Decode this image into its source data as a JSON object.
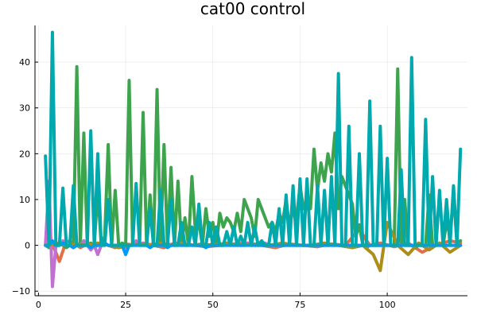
{
  "chart_data": {
    "type": "line",
    "title": "cat00 control",
    "xlabel": "",
    "ylabel": "",
    "xlim": [
      -1,
      123
    ],
    "ylim": [
      -11,
      48
    ],
    "xticks": [
      0,
      25,
      50,
      75,
      100
    ],
    "yticks": [
      -10,
      0,
      10,
      20,
      30,
      40
    ],
    "grid": true,
    "legend": "none",
    "series": [
      {
        "color": "#e26f46",
        "x": [
          2,
          4,
          6,
          8,
          10,
          12,
          14,
          16,
          18,
          20,
          22,
          25,
          28,
          30,
          33,
          36,
          39,
          42,
          45,
          48,
          52,
          56,
          60,
          64,
          68,
          72,
          76,
          80,
          84,
          88,
          92,
          95,
          98,
          102,
          106,
          110,
          114,
          118,
          121
        ],
        "y": [
          0,
          0.3,
          -3.5,
          1,
          0.5,
          -0.5,
          0.3,
          -0.5,
          0.5,
          0,
          -0.5,
          0.3,
          0,
          0.5,
          0,
          -0.5,
          0.5,
          0.3,
          0,
          -0.3,
          0,
          0.3,
          0.5,
          0,
          -0.5,
          0.3,
          0,
          -0.3,
          0.3,
          0,
          3.5,
          0,
          0.5,
          -0.3,
          0.5,
          -1.5,
          0,
          1,
          0.5
        ]
      },
      {
        "color": "#3da44d",
        "x": [
          2,
          3,
          4,
          5,
          6,
          7,
          8,
          9,
          10,
          11,
          12,
          13,
          14,
          15,
          16,
          17,
          18,
          19,
          20,
          21,
          22,
          23,
          24,
          25,
          26,
          27,
          28,
          29,
          30,
          31,
          32,
          33,
          34,
          35,
          36,
          37,
          38,
          39,
          40,
          41,
          42,
          43,
          44,
          45,
          46,
          47,
          48,
          49,
          50,
          51,
          52,
          53,
          54,
          55,
          56,
          57,
          58,
          59,
          60,
          61,
          62,
          63,
          64,
          65,
          66,
          67,
          68,
          69,
          70,
          71,
          72,
          73,
          74,
          75,
          76,
          77,
          78,
          79,
          80,
          81,
          82,
          83,
          84,
          85,
          86,
          87,
          88,
          89,
          90,
          91,
          92,
          93,
          94,
          95,
          96,
          97,
          98,
          99,
          100,
          101,
          102,
          103,
          104,
          105,
          106,
          107,
          108,
          109,
          110,
          111,
          112,
          113,
          114,
          115,
          116,
          117,
          118,
          119,
          120,
          121
        ],
        "y": [
          0,
          -0.5,
          0.5,
          0,
          0.5,
          0,
          -0.5,
          0,
          0,
          39,
          0,
          24.5,
          0,
          0.5,
          0,
          12,
          0,
          2,
          22,
          0,
          12,
          0,
          0.5,
          0,
          36,
          0,
          0.5,
          0,
          29,
          0,
          11,
          0,
          34,
          0,
          22,
          0,
          17,
          0,
          14,
          0,
          6,
          0,
          15,
          3,
          5,
          0,
          8,
          2,
          5,
          0,
          7,
          4,
          6,
          5,
          3,
          7,
          3,
          10,
          8,
          6,
          2,
          10,
          8,
          6,
          4,
          5,
          3,
          7,
          5,
          10,
          4,
          8,
          6,
          13,
          8,
          10,
          8,
          21,
          12,
          18,
          14,
          20,
          16,
          24.5,
          8,
          15,
          13,
          11,
          9,
          2,
          4.5,
          0,
          -0.5,
          0,
          0,
          0,
          0,
          0,
          0,
          0,
          0,
          38.5,
          0,
          10,
          0,
          0,
          -0.5,
          0,
          0,
          0,
          11,
          0,
          0,
          0.5,
          0,
          5,
          2,
          11,
          0.5,
          1
        ]
      },
      {
        "color": "#c271d2",
        "x": [
          2,
          3,
          4,
          5,
          6,
          7,
          8,
          9,
          10,
          11,
          12,
          13,
          14,
          15,
          16,
          17,
          18,
          19,
          20,
          21,
          22,
          23,
          24,
          25,
          26,
          27,
          28,
          29,
          30,
          31,
          32,
          33,
          34,
          35,
          36,
          37,
          38,
          39,
          40,
          41,
          42,
          43,
          44,
          45,
          46,
          47,
          48,
          49,
          50,
          51,
          52,
          53,
          54,
          55,
          56,
          57,
          58,
          59,
          60,
          61,
          62,
          63,
          64,
          65,
          66,
          67,
          68,
          69,
          70,
          71,
          72,
          73,
          74,
          75,
          76,
          77,
          78,
          79,
          80,
          81,
          82,
          83,
          84,
          85,
          86,
          87,
          88,
          89,
          90,
          91,
          92,
          93,
          94,
          95,
          96,
          97,
          98,
          99,
          100,
          101,
          102,
          103,
          104,
          105,
          106,
          107,
          108,
          109,
          110,
          111,
          112,
          113,
          114,
          115,
          116,
          117,
          118,
          119,
          120,
          121
        ],
        "y": [
          0,
          14,
          -9,
          0,
          0,
          1,
          0,
          0,
          -0.5,
          0,
          0,
          1,
          0,
          -1,
          0,
          -2,
          0,
          0.5,
          0,
          0,
          -0.5,
          0,
          0,
          -0.5,
          0,
          0,
          1,
          0,
          0.5,
          0,
          0,
          0.5,
          0,
          0,
          0,
          0.5,
          0,
          0,
          0.5,
          0,
          0,
          0.5,
          0,
          0,
          0,
          0.5,
          0,
          0,
          0.5,
          0,
          0,
          0,
          0.5,
          0,
          0,
          0,
          0,
          0,
          0.5,
          0,
          0,
          0,
          0,
          0.5,
          0,
          0,
          0,
          0,
          0,
          0,
          0,
          0,
          0,
          0,
          0,
          0,
          0,
          0,
          0,
          0,
          0,
          0,
          0,
          0,
          0,
          0,
          0,
          0,
          0,
          0,
          0,
          0,
          0,
          0,
          0,
          0,
          0,
          0,
          0,
          0,
          0,
          0,
          0,
          0,
          0,
          0,
          0,
          0,
          0,
          0,
          0,
          0,
          0,
          0,
          0,
          0,
          0,
          0,
          0,
          0
        ]
      },
      {
        "color": "#ac8d18",
        "x": [
          2,
          5,
          8,
          11,
          14,
          17,
          20,
          23,
          26,
          29,
          32,
          35,
          38,
          41,
          44,
          47,
          50,
          54,
          58,
          62,
          66,
          70,
          74,
          78,
          82,
          86,
          90,
          93,
          96,
          98,
          100,
          103,
          106,
          109,
          112,
          115,
          118,
          121
        ],
        "y": [
          0,
          0.5,
          0,
          0.3,
          0,
          0.5,
          0,
          -0.5,
          0,
          0.3,
          0,
          0.5,
          0,
          0.5,
          0,
          0.3,
          0,
          0.5,
          0,
          0.3,
          0,
          0.5,
          0,
          0,
          0.5,
          0,
          -0.5,
          0,
          -2,
          -5.5,
          5,
          0,
          -2,
          0.5,
          -1,
          0.5,
          -1.5,
          0
        ]
      },
      {
        "color": "#009af9",
        "x": [
          2,
          3,
          4,
          5,
          6,
          7,
          8,
          9,
          10,
          11,
          12,
          13,
          14,
          15,
          16,
          17,
          18,
          19,
          20,
          21,
          22,
          23,
          24,
          25,
          26,
          27,
          28,
          29,
          30,
          31,
          32,
          33,
          34,
          35,
          36,
          37,
          38,
          39,
          40,
          41,
          42,
          43,
          44,
          45,
          46,
          47,
          48,
          49,
          50,
          51,
          52,
          53,
          54,
          55,
          56,
          57,
          58,
          59,
          60,
          61,
          62,
          63,
          64,
          65,
          66,
          67,
          68,
          69,
          70,
          71,
          72,
          73,
          74,
          75,
          76,
          77,
          78,
          79,
          80,
          81,
          82,
          83,
          84,
          85,
          86,
          87,
          88,
          89,
          90,
          91,
          92,
          93,
          94,
          95,
          96,
          97,
          98,
          99,
          100,
          101,
          102,
          103,
          104,
          105,
          106,
          107,
          108,
          109,
          110,
          111,
          112,
          113,
          114,
          115,
          116,
          117,
          118,
          119,
          120,
          121
        ],
        "y": [
          0,
          0,
          1,
          0,
          0,
          0.5,
          0,
          0,
          -0.5,
          0,
          0,
          0,
          0,
          -0.5,
          0,
          0,
          0,
          0.5,
          0,
          0,
          0,
          0,
          0,
          -2,
          0,
          0,
          0,
          0,
          0,
          0,
          -0.5,
          0,
          0,
          0,
          0,
          -0.5,
          0,
          0,
          0,
          0,
          0,
          0,
          0,
          0,
          0,
          0,
          -0.5,
          0,
          0,
          0,
          0,
          0,
          0,
          0,
          0,
          0,
          0,
          0,
          0,
          0,
          0,
          0,
          0,
          0,
          0,
          0,
          0,
          0,
          0,
          0,
          0,
          0,
          0,
          0,
          0,
          0,
          0,
          0,
          0,
          0,
          0,
          0,
          0,
          0,
          0,
          0,
          0,
          0,
          0,
          0,
          0,
          0,
          0,
          0,
          0,
          0,
          0,
          0,
          0,
          0,
          0,
          0,
          0,
          0,
          0,
          0,
          0,
          0,
          0,
          0,
          0,
          0,
          0,
          0,
          0,
          0,
          0,
          0,
          0,
          0
        ]
      },
      {
        "color": "#00a9ad",
        "x": [
          2,
          3,
          4,
          5,
          6,
          7,
          8,
          9,
          10,
          11,
          12,
          13,
          14,
          15,
          16,
          17,
          18,
          19,
          20,
          21,
          22,
          23,
          24,
          25,
          26,
          27,
          28,
          29,
          30,
          31,
          32,
          33,
          34,
          35,
          36,
          37,
          38,
          39,
          40,
          41,
          42,
          43,
          44,
          45,
          46,
          47,
          48,
          49,
          50,
          51,
          52,
          53,
          54,
          55,
          56,
          57,
          58,
          59,
          60,
          61,
          62,
          63,
          64,
          65,
          66,
          67,
          68,
          69,
          70,
          71,
          72,
          73,
          74,
          75,
          76,
          77,
          78,
          79,
          80,
          81,
          82,
          83,
          84,
          85,
          86,
          87,
          88,
          89,
          90,
          91,
          92,
          93,
          94,
          95,
          96,
          97,
          98,
          99,
          100,
          101,
          102,
          103,
          104,
          105,
          106,
          107,
          108,
          109,
          110,
          111,
          112,
          113,
          114,
          115,
          116,
          117,
          118,
          119,
          120,
          121
        ],
        "y": [
          19.5,
          0,
          46.5,
          0,
          0,
          12.5,
          0,
          0,
          13,
          0,
          0,
          0,
          0,
          25,
          0,
          20,
          0,
          0,
          10,
          0,
          0,
          0,
          0,
          0,
          0,
          0,
          13.5,
          0,
          0,
          0,
          8,
          0,
          0,
          12,
          0,
          0,
          10,
          0,
          0,
          5,
          0,
          0,
          4,
          0,
          9,
          0,
          0,
          5,
          0,
          4,
          0,
          0,
          3,
          0,
          4,
          0,
          2,
          0,
          5,
          0,
          4,
          0,
          1,
          0,
          0,
          5,
          0,
          8,
          0,
          11,
          0,
          13,
          0,
          14.5,
          0,
          14.5,
          0,
          0,
          13,
          0,
          12,
          0,
          15,
          0,
          37.5,
          0,
          0,
          26,
          0,
          0,
          20,
          0,
          0,
          31.5,
          0,
          0,
          26,
          0,
          19,
          0,
          0,
          0,
          16.5,
          0,
          0,
          41,
          0,
          0,
          0,
          27.5,
          0,
          15,
          0,
          12,
          0,
          10,
          0,
          13,
          0,
          21
        ]
      }
    ]
  }
}
